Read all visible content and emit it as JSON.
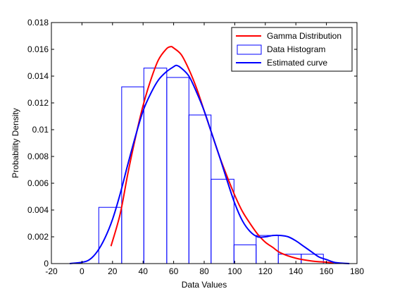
{
  "chart_data": {
    "type": "bar",
    "xlabel": "Data Values",
    "ylabel": "Probability Density",
    "xlim": [
      -20,
      180
    ],
    "ylim": [
      0,
      0.018
    ],
    "x_ticks": [
      "-20",
      "0",
      "20",
      "40",
      "60",
      "80",
      "100",
      "120",
      "140",
      "160",
      "180"
    ],
    "y_ticks": [
      "0",
      "0.002",
      "0.004",
      "0.006",
      "0.008",
      "0.01",
      "0.012",
      "0.014",
      "0.016",
      "0.018"
    ],
    "grid": false,
    "legend_position": "top-right",
    "colors": {
      "gamma": "#ff0000",
      "histogram": "#0000ff",
      "estimated": "#0000ff",
      "axes": "#000000",
      "background": "#ffffff"
    },
    "histogram": {
      "name": "Data Histogram",
      "bin_edges": [
        11,
        26,
        40.5,
        55.5,
        70,
        84.5,
        99.5,
        114,
        128.5,
        143.5,
        158
      ],
      "values": [
        0.0042,
        0.0132,
        0.0146,
        0.0139,
        0.0111,
        0.0063,
        0.0014,
        0.0021,
        0.0007,
        0.0007
      ]
    },
    "series": [
      {
        "name": "Gamma Distribution",
        "type": "line",
        "x": [
          19,
          25,
          30,
          35,
          40,
          45,
          50,
          55,
          58,
          60,
          65,
          70,
          75,
          80,
          85,
          90,
          95,
          100,
          105,
          110,
          115,
          120,
          125,
          130,
          140,
          150,
          160,
          165
        ],
        "y": [
          0.0013,
          0.0037,
          0.0067,
          0.0094,
          0.0118,
          0.0137,
          0.0152,
          0.016,
          0.0162,
          0.0161,
          0.0156,
          0.0145,
          0.0131,
          0.0114,
          0.0097,
          0.008,
          0.0065,
          0.0051,
          0.0039,
          0.003,
          0.0022,
          0.0016,
          0.0012,
          0.0008,
          0.0004,
          0.0002,
          0.0001,
          5e-05
        ]
      },
      {
        "name": "Estimated curve",
        "type": "line",
        "x": [
          -8,
          0,
          5,
          10,
          15,
          20,
          25,
          30,
          35,
          40,
          45,
          50,
          55,
          60,
          62,
          65,
          70,
          75,
          80,
          85,
          90,
          95,
          100,
          105,
          110,
          115,
          120,
          125,
          130,
          135,
          140,
          145,
          150,
          155,
          160,
          165,
          170,
          175
        ],
        "y": [
          0.0,
          0.0001,
          0.0003,
          0.0009,
          0.0019,
          0.0033,
          0.0052,
          0.0074,
          0.0095,
          0.0114,
          0.0127,
          0.0137,
          0.0143,
          0.0147,
          0.0148,
          0.0146,
          0.014,
          0.0128,
          0.0114,
          0.0097,
          0.008,
          0.0062,
          0.0045,
          0.0032,
          0.0024,
          0.002,
          0.002,
          0.0021,
          0.0021,
          0.002,
          0.0017,
          0.0013,
          0.0009,
          0.0005,
          0.0003,
          0.0001,
          3e-05,
          0.0
        ]
      }
    ]
  }
}
